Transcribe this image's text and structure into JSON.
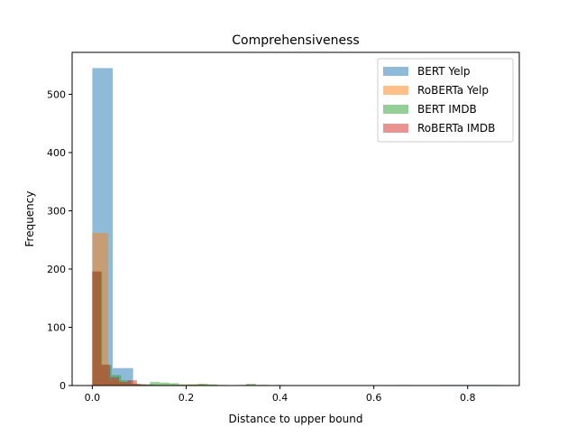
{
  "chart_data": {
    "type": "bar",
    "title": "Comprehensiveness",
    "xlabel": "Distance to upper bound",
    "ylabel": "Frequency",
    "xlim": [
      -0.043,
      0.91
    ],
    "ylim": [
      0,
      572
    ],
    "x_ticks": [
      0.0,
      0.2,
      0.4,
      0.6,
      0.8
    ],
    "x_tick_labels": [
      "0.0",
      "0.2",
      "0.4",
      "0.6",
      "0.8"
    ],
    "y_ticks": [
      0,
      100,
      200,
      300,
      400,
      500
    ],
    "y_tick_labels": [
      "0",
      "100",
      "200",
      "300",
      "400",
      "500"
    ],
    "grid": false,
    "legend_position": "top-right",
    "series": [
      {
        "name": "BERT Yelp",
        "color": "#1f77b4",
        "bin_edges": [
          0.0,
          0.0435,
          0.087,
          0.1305,
          0.174,
          0.2175,
          0.261,
          0.3045,
          0.348,
          0.3915,
          0.435,
          0.4785,
          0.522,
          0.5655,
          0.609,
          0.6525,
          0.696,
          0.7395,
          0.783,
          0.8265,
          0.87
        ],
        "counts": [
          545,
          30,
          2,
          1,
          0,
          1,
          0,
          0,
          0,
          0,
          0,
          0,
          0,
          0,
          0,
          0,
          0,
          1,
          1,
          1
        ]
      },
      {
        "name": "RoBERTa Yelp",
        "color": "#ff7f0e",
        "bin_edges": [
          0.0,
          0.034,
          0.068,
          0.102,
          0.136,
          0.17,
          0.204,
          0.238,
          0.272,
          0.306,
          0.34,
          0.374,
          0.408,
          0.442,
          0.476,
          0.51,
          0.544,
          0.578,
          0.612,
          0.646,
          0.68
        ],
        "counts": [
          262,
          8,
          3,
          1,
          1,
          1,
          2,
          1,
          0,
          0,
          1,
          0,
          0,
          0,
          0,
          0,
          0,
          0,
          0,
          1
        ]
      },
      {
        "name": "BERT IMDB",
        "color": "#2ca02c",
        "bin_edges": [
          0.0,
          0.0205,
          0.041,
          0.0615,
          0.082,
          0.1025,
          0.123,
          0.1435,
          0.164,
          0.1845,
          0.205,
          0.2255,
          0.246,
          0.2665,
          0.287,
          0.3075,
          0.328,
          0.3485,
          0.369,
          0.3895,
          0.41
        ],
        "counts": [
          195,
          35,
          18,
          9,
          3,
          2,
          6,
          5,
          4,
          2,
          2,
          3,
          2,
          1,
          0,
          1,
          3,
          1,
          0,
          1
        ]
      },
      {
        "name": "RoBERTa IMDB",
        "color": "#d62728",
        "bin_edges": [
          0.0,
          0.019,
          0.038,
          0.057,
          0.076,
          0.095,
          0.114,
          0.133,
          0.152,
          0.171,
          0.19,
          0.209,
          0.228,
          0.247,
          0.266,
          0.285,
          0.304,
          0.323,
          0.342,
          0.361,
          0.38
        ],
        "counts": [
          196,
          36,
          14,
          6,
          9,
          2,
          1,
          1,
          0,
          1,
          1,
          1,
          1,
          0,
          0,
          0,
          0,
          1,
          0,
          1
        ]
      }
    ]
  }
}
